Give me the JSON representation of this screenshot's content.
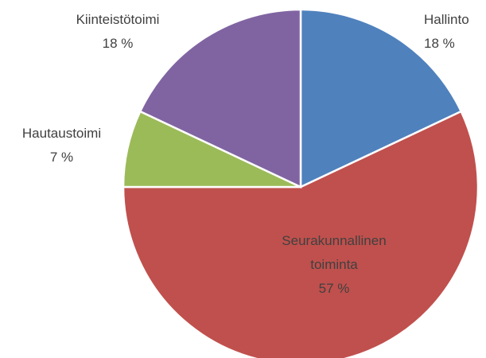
{
  "chart_data": {
    "type": "pie",
    "categories": [
      "Hallinto",
      "Seurakunnallinen toiminta",
      "Hautaustoimi",
      "Kiinteistötoimi"
    ],
    "values": [
      18,
      57,
      7,
      18
    ],
    "value_labels": [
      "18 %",
      "57 %",
      "7 %",
      "18 %"
    ],
    "colors": [
      "#4f81bd",
      "#c0504d",
      "#9bbb59",
      "#8064a2"
    ]
  }
}
